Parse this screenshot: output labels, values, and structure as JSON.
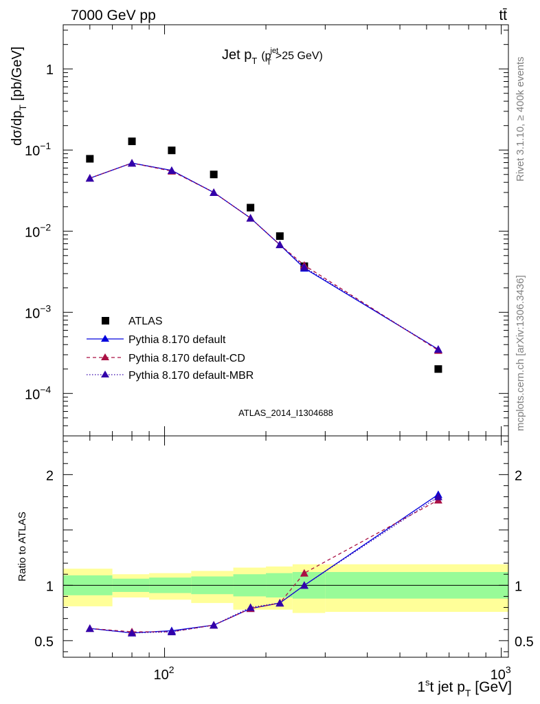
{
  "header": {
    "left": "7000 GeV pp",
    "right": "tt̄"
  },
  "side_text": {
    "rivet": "Rivet 3.1.10, ≥ 400k events",
    "mcplots": "mcplots.cern.ch [arXiv:1306.3436]"
  },
  "chart_data": [
    {
      "type": "line",
      "title": "Jet p_T (p_T^jet>25 GeV)",
      "title_parts": {
        "main": "Jet p",
        "sub": "T",
        "paren_open": "(p",
        "sup": "jet",
        "sub2": "T",
        "rest": ">25 GeV)"
      },
      "ylabel": "dσ/dp_T [pb/GeV]",
      "ylabel_parts": {
        "main": "dσ/dp",
        "sub": "T",
        "rest": " [pb/GeV]"
      },
      "xscale": "log",
      "yscale": "log",
      "xlim": [
        50,
        1050
      ],
      "ylim": [
        3e-05,
        3.5
      ],
      "y_ticks": [
        {
          "value": 1,
          "label": "1"
        },
        {
          "value": 0.1,
          "label": "10",
          "exp": "−1"
        },
        {
          "value": 0.01,
          "label": "10",
          "exp": "−2"
        },
        {
          "value": 0.001,
          "label": "10",
          "exp": "−3"
        },
        {
          "value": 0.0001,
          "label": "10",
          "exp": "−4"
        }
      ],
      "watermark": "ATLAS_2014_I1304688",
      "legend_position": "lower-left",
      "series": [
        {
          "name": "ATLAS",
          "style": "data",
          "color": "#000000",
          "x": [
            60,
            80,
            105,
            140,
            180,
            220,
            260,
            650
          ],
          "y": [
            0.078,
            0.128,
            0.099,
            0.05,
            0.0195,
            0.0087,
            0.0037,
            0.0002
          ]
        },
        {
          "name": "Pythia 8.170 default",
          "style": "solid",
          "color": "#0000dd",
          "x": [
            60,
            80,
            105,
            140,
            180,
            220,
            260,
            650
          ],
          "y": [
            0.045,
            0.069,
            0.056,
            0.03,
            0.0145,
            0.0068,
            0.0035,
            0.00035
          ]
        },
        {
          "name": "Pythia 8.170 default-CD",
          "style": "dashed",
          "color": "#aa1144",
          "x": [
            60,
            80,
            105,
            140,
            180,
            220,
            260,
            650
          ],
          "y": [
            0.045,
            0.069,
            0.055,
            0.03,
            0.0145,
            0.0068,
            0.0038,
            0.00034
          ]
        },
        {
          "name": "Pythia 8.170 default-MBR",
          "style": "dotted",
          "color": "#3300aa",
          "x": [
            60,
            80,
            105,
            140,
            180,
            220,
            260,
            650
          ],
          "y": [
            0.045,
            0.069,
            0.056,
            0.03,
            0.0145,
            0.0068,
            0.0036,
            0.00035
          ]
        }
      ]
    },
    {
      "type": "line",
      "ylabel": "Ratio to ATLAS",
      "xlabel": "1st jet p_T [GeV]",
      "xlabel_parts": {
        "pre": "1",
        "sup": "s",
        "main": "t jet p",
        "sub": "T",
        "rest": " [GeV]"
      },
      "xscale": "log",
      "xlim": [
        50,
        1050
      ],
      "ylim": [
        0.35,
        2.35
      ],
      "x_ticks": [
        {
          "value": 100,
          "label": "10",
          "exp": "2"
        },
        {
          "value": 1000,
          "label": "10",
          "exp": "3"
        }
      ],
      "y_ticks": [
        {
          "value": 0.5,
          "label": "0.5"
        },
        {
          "value": 1,
          "label": "1"
        },
        {
          "value": 2,
          "label": "2"
        }
      ],
      "bins": [
        50,
        70,
        90,
        120,
        160,
        200,
        240,
        300,
        1050
      ],
      "band_stat": [
        [
          0.91,
          1.09
        ],
        [
          0.94,
          1.06
        ],
        [
          0.93,
          1.07
        ],
        [
          0.92,
          1.08
        ],
        [
          0.9,
          1.1
        ],
        [
          0.89,
          1.11
        ],
        [
          0.88,
          1.12
        ],
        [
          0.88,
          1.12
        ]
      ],
      "band_total": [
        [
          0.81,
          1.15
        ],
        [
          0.89,
          1.1
        ],
        [
          0.87,
          1.11
        ],
        [
          0.84,
          1.13
        ],
        [
          0.78,
          1.16
        ],
        [
          0.78,
          1.17
        ],
        [
          0.75,
          1.19
        ],
        [
          0.76,
          1.19
        ]
      ],
      "band_colors": {
        "stat": "#98fb98",
        "total": "#ffff99"
      },
      "series": [
        {
          "name": "Pythia 8.170 default",
          "style": "solid",
          "color": "#0000dd",
          "x": [
            60,
            80,
            105,
            140,
            180,
            220,
            260,
            650
          ],
          "y": [
            0.61,
            0.57,
            0.59,
            0.64,
            0.79,
            0.84,
            1.0,
            1.82
          ]
        },
        {
          "name": "Pythia 8.170 default-CD",
          "style": "dashed",
          "color": "#aa1144",
          "x": [
            60,
            80,
            105,
            140,
            180,
            220,
            260,
            650
          ],
          "y": [
            0.61,
            0.58,
            0.58,
            0.64,
            0.79,
            0.84,
            1.11,
            1.77
          ]
        },
        {
          "name": "Pythia 8.170 default-MBR",
          "style": "dotted",
          "color": "#3300aa",
          "x": [
            60,
            80,
            105,
            140,
            180,
            220,
            260,
            650
          ],
          "y": [
            0.61,
            0.57,
            0.58,
            0.64,
            0.8,
            0.84,
            1.0,
            1.8
          ]
        }
      ]
    }
  ]
}
